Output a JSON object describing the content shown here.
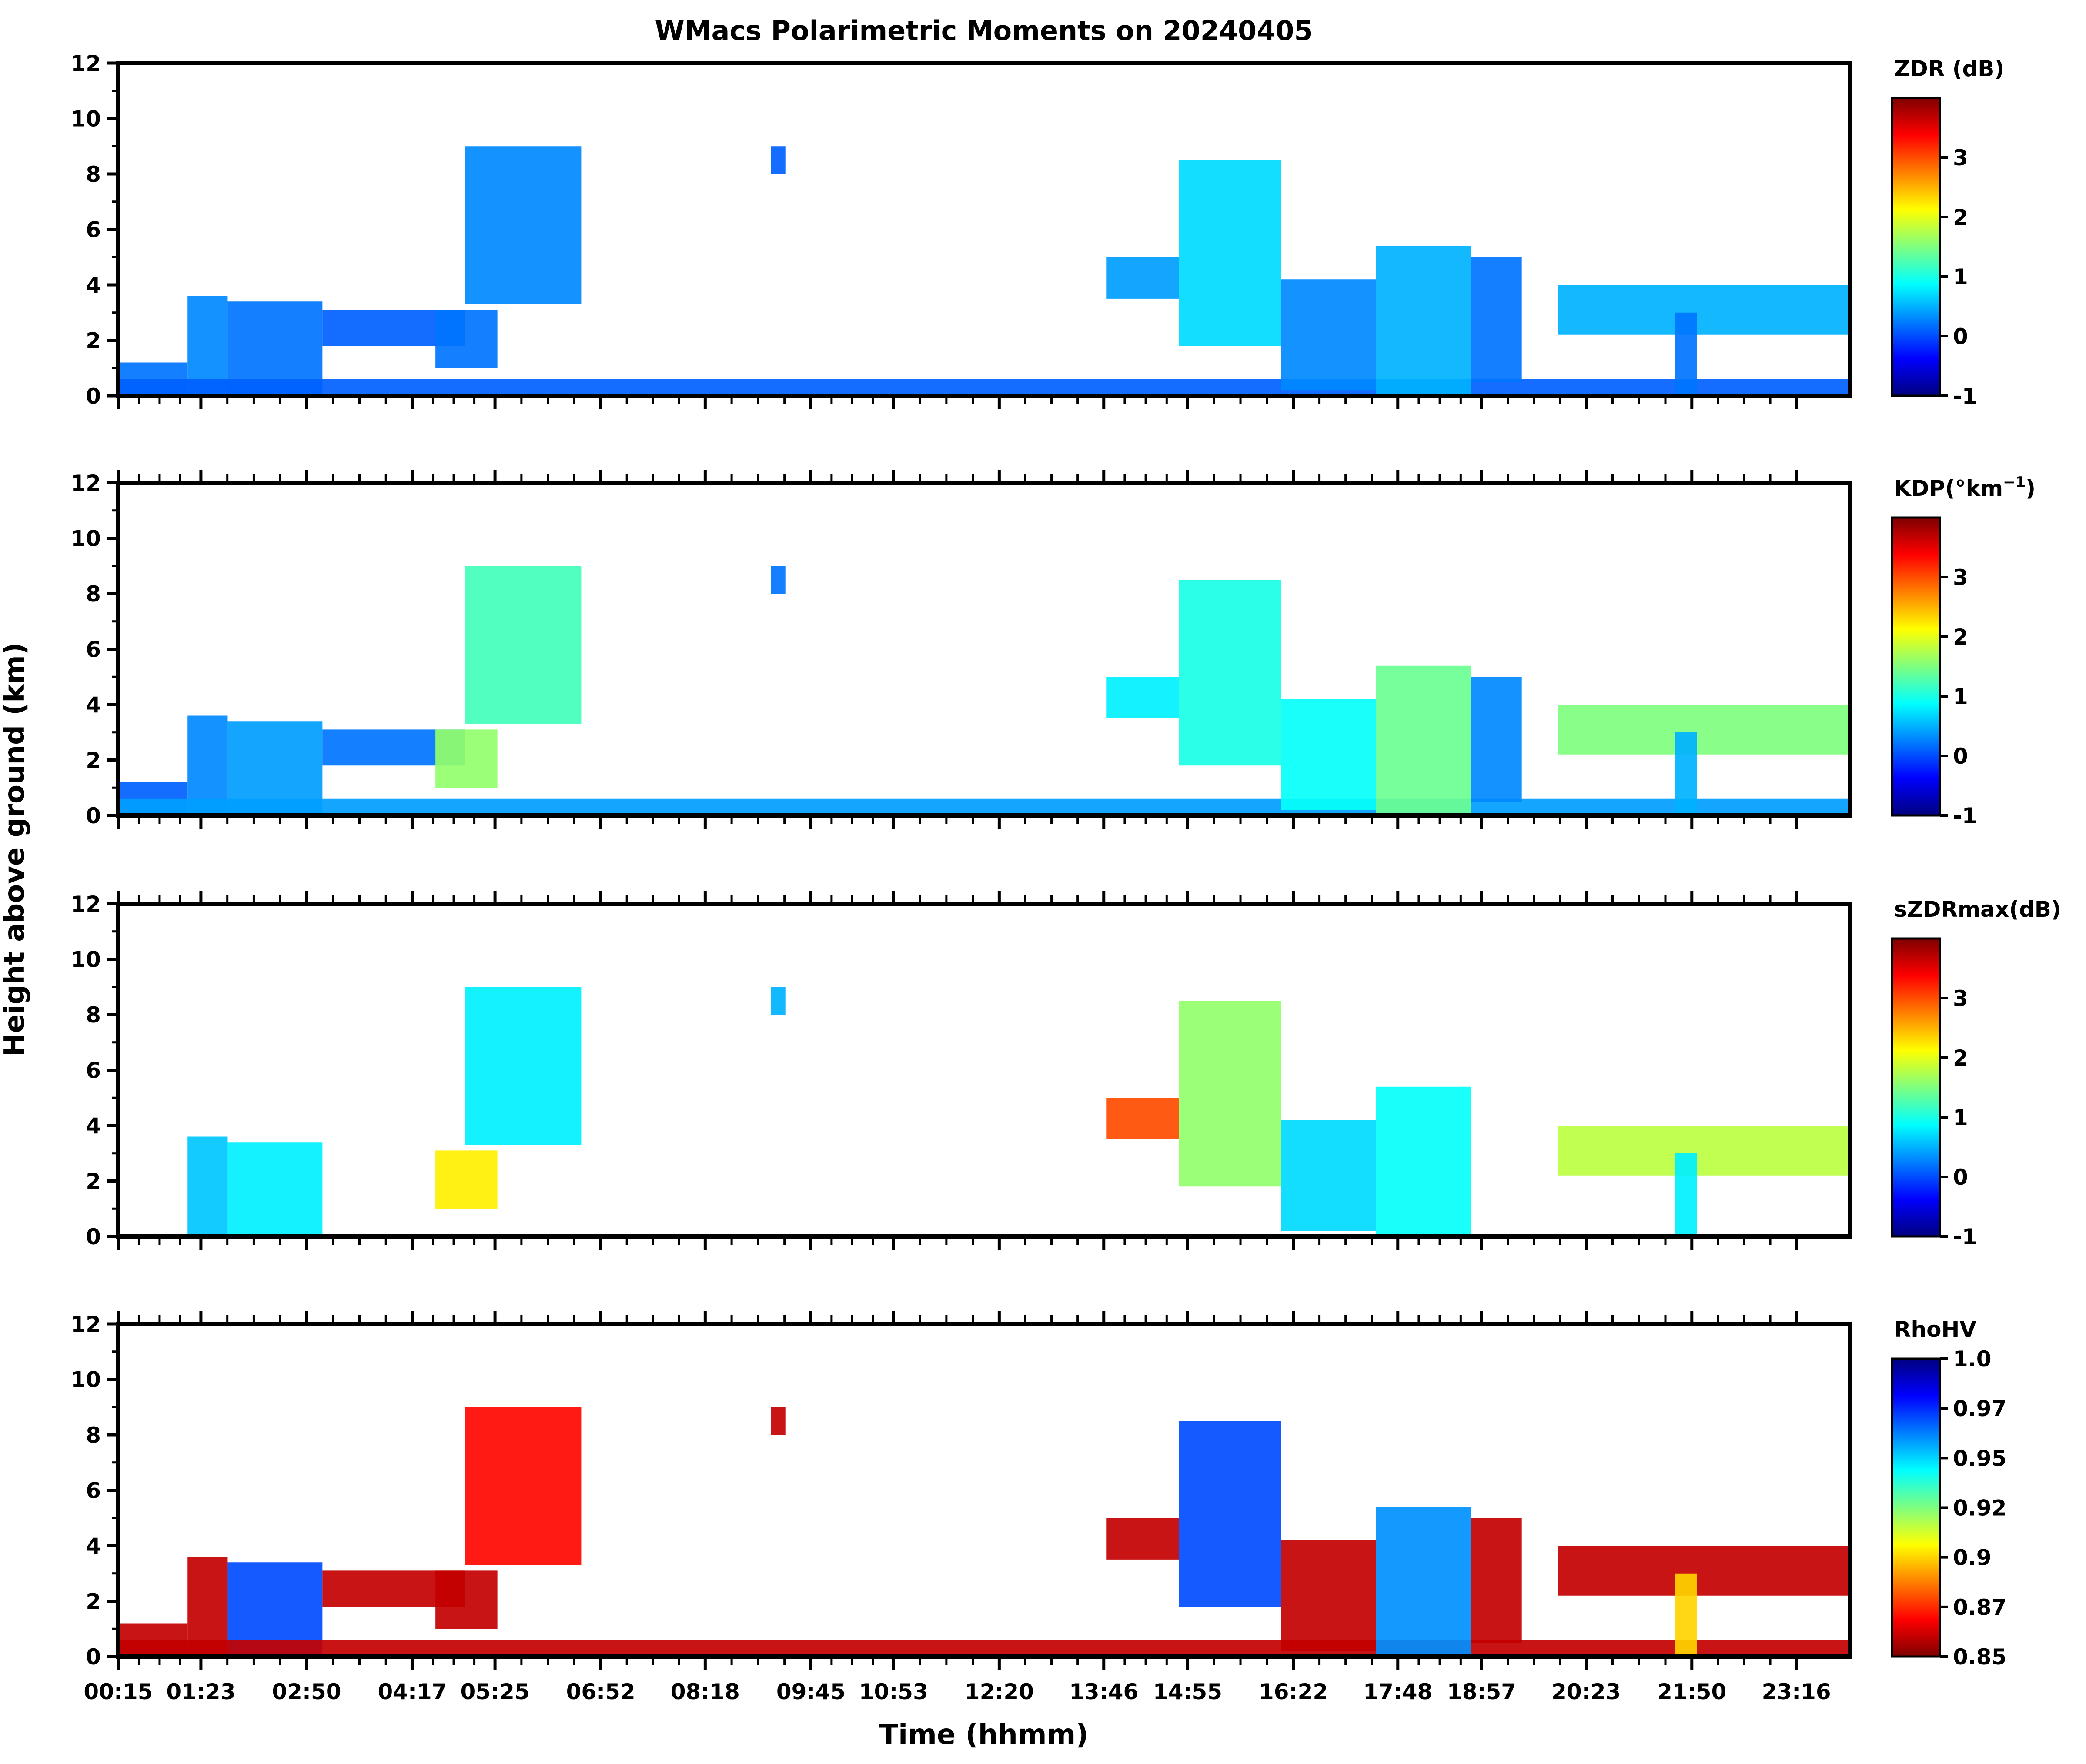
{
  "figure": {
    "title": "WMacs Polarimetric Moments on 20240405",
    "xlabel": "Time (hhmm)",
    "ylabel": "Height above ground (km)"
  },
  "colors": {
    "jet": [
      "#00007f",
      "#0000ff",
      "#007fff",
      "#00ffff",
      "#7fff7f",
      "#ffff00",
      "#ff7f00",
      "#ff0000",
      "#7f0000"
    ],
    "rho_dark": "#8b0000"
  },
  "chart_data": [
    {
      "type": "heatmap",
      "id": "zdr",
      "colorbar_label": "ZDR (dB)",
      "clim": [
        -1,
        4
      ],
      "colorbar_ticks": [
        "-1",
        "0",
        "1",
        "2",
        "3"
      ],
      "colorbar_tick_values": [
        -1,
        0,
        1,
        2,
        3
      ],
      "ylim": [
        0,
        12
      ],
      "yticks": [
        "0",
        "2",
        "4",
        "6",
        "8",
        "10",
        "12"
      ]
    },
    {
      "type": "heatmap",
      "id": "kdp",
      "colorbar_label": "KDP(°km",
      "colorbar_label_sup": "−1",
      "colorbar_label_end": ")",
      "clim": [
        -1,
        4
      ],
      "colorbar_ticks": [
        "-1",
        "0",
        "1",
        "2",
        "3"
      ],
      "colorbar_tick_values": [
        -1,
        0,
        1,
        2,
        3
      ],
      "ylim": [
        0,
        12
      ],
      "yticks": [
        "0",
        "2",
        "4",
        "6",
        "8",
        "10",
        "12"
      ]
    },
    {
      "type": "heatmap",
      "id": "szdr",
      "colorbar_label": "sZDRmax(dB)",
      "clim": [
        -1,
        4
      ],
      "colorbar_ticks": [
        "-1",
        "0",
        "1",
        "2",
        "3"
      ],
      "colorbar_tick_values": [
        -1,
        0,
        1,
        2,
        3
      ],
      "ylim": [
        0,
        12
      ],
      "yticks": [
        "0",
        "2",
        "4",
        "6",
        "8",
        "10",
        "12"
      ]
    },
    {
      "type": "heatmap",
      "id": "rhohv",
      "colorbar_label": "RhoHV",
      "clim": [
        0.85,
        1.0
      ],
      "colorbar_reversed": true,
      "colorbar_ticks": [
        "0.85",
        "0.87",
        "0.9",
        "0.92",
        "0.95",
        "0.97",
        "1.0"
      ],
      "colorbar_tick_values": [
        0.85,
        0.875,
        0.9,
        0.925,
        0.95,
        0.975,
        1.0
      ],
      "ylim": [
        0,
        12
      ],
      "yticks": [
        "0",
        "2",
        "4",
        "6",
        "8",
        "10",
        "12"
      ]
    }
  ],
  "x_axis": {
    "range_hours": [
      0.25,
      24.0
    ],
    "tick_labels": [
      "00:15",
      "01:23",
      "02:50",
      "04:17",
      "05:25",
      "06:52",
      "08:18",
      "09:45",
      "10:53",
      "12:20",
      "13:46",
      "14:55",
      "16:22",
      "17:48",
      "18:57",
      "20:23",
      "21:50",
      "23:16"
    ],
    "tick_hours": [
      0.25,
      1.383,
      2.833,
      4.283,
      5.417,
      6.867,
      8.3,
      9.75,
      10.883,
      12.333,
      13.767,
      14.917,
      16.367,
      17.8,
      18.95,
      20.383,
      21.833,
      23.267
    ]
  },
  "echoes": [
    {
      "t0": 0.25,
      "t1": 1.2,
      "h0": 0.0,
      "h1": 1.2,
      "zdr": 0.2,
      "kdp": 0.1,
      "szdr": null,
      "rho": 0.86
    },
    {
      "t0": 1.2,
      "t1": 1.75,
      "h0": 0.0,
      "h1": 3.6,
      "zdr": 0.3,
      "kdp": 0.3,
      "szdr": 0.6,
      "rho": 0.86
    },
    {
      "t0": 1.75,
      "t1": 3.05,
      "h0": 0.0,
      "h1": 3.4,
      "zdr": 0.2,
      "kdp": 0.4,
      "szdr": 0.8,
      "rho": 0.97
    },
    {
      "t0": 3.05,
      "t1": 5.0,
      "h0": 1.8,
      "h1": 3.1,
      "zdr": 0.1,
      "kdp": 0.2,
      "szdr": null,
      "rho": 0.86
    },
    {
      "t0": 4.6,
      "t1": 5.45,
      "h0": 1.0,
      "h1": 3.1,
      "zdr": 0.2,
      "kdp": 1.6,
      "szdr": 2.2,
      "rho": 0.86
    },
    {
      "t0": 5.0,
      "t1": 6.6,
      "h0": 3.3,
      "h1": 9.0,
      "zdr": 0.3,
      "kdp": 1.2,
      "szdr": 0.8,
      "rho": 0.87
    },
    {
      "t0": 9.2,
      "t1": 9.4,
      "h0": 8.0,
      "h1": 9.0,
      "zdr": 0.1,
      "kdp": 0.2,
      "szdr": 0.5,
      "rho": 0.86
    },
    {
      "t0": 0.25,
      "t1": 24.0,
      "h0": 0.0,
      "h1": 0.6,
      "zdr": 0.1,
      "kdp": 0.4,
      "szdr": null,
      "rho": 0.86
    },
    {
      "t0": 13.8,
      "t1": 14.8,
      "h0": 3.5,
      "h1": 5.0,
      "zdr": 0.4,
      "kdp": 0.8,
      "szdr": 3.0,
      "rho": 0.86
    },
    {
      "t0": 14.8,
      "t1": 16.2,
      "h0": 1.8,
      "h1": 8.5,
      "zdr": 0.7,
      "kdp": 1.0,
      "szdr": 1.6,
      "rho": 0.97
    },
    {
      "t0": 16.2,
      "t1": 17.5,
      "h0": 0.2,
      "h1": 4.2,
      "zdr": 0.3,
      "kdp": 0.9,
      "szdr": 0.7,
      "rho": 0.86
    },
    {
      "t0": 17.5,
      "t1": 18.8,
      "h0": 0.0,
      "h1": 5.4,
      "zdr": 0.5,
      "kdp": 1.4,
      "szdr": 0.9,
      "rho": 0.96
    },
    {
      "t0": 18.8,
      "t1": 19.5,
      "h0": 0.5,
      "h1": 5.0,
      "zdr": 0.2,
      "kdp": 0.3,
      "szdr": null,
      "rho": 0.86
    },
    {
      "t0": 20.0,
      "t1": 24.0,
      "h0": 2.2,
      "h1": 4.0,
      "zdr": 0.5,
      "kdp": 1.5,
      "szdr": 1.8,
      "rho": 0.86
    },
    {
      "t0": 21.6,
      "t1": 21.9,
      "h0": 0.0,
      "h1": 3.0,
      "zdr": 0.2,
      "kdp": 0.5,
      "szdr": 0.8,
      "rho": 0.9
    }
  ]
}
